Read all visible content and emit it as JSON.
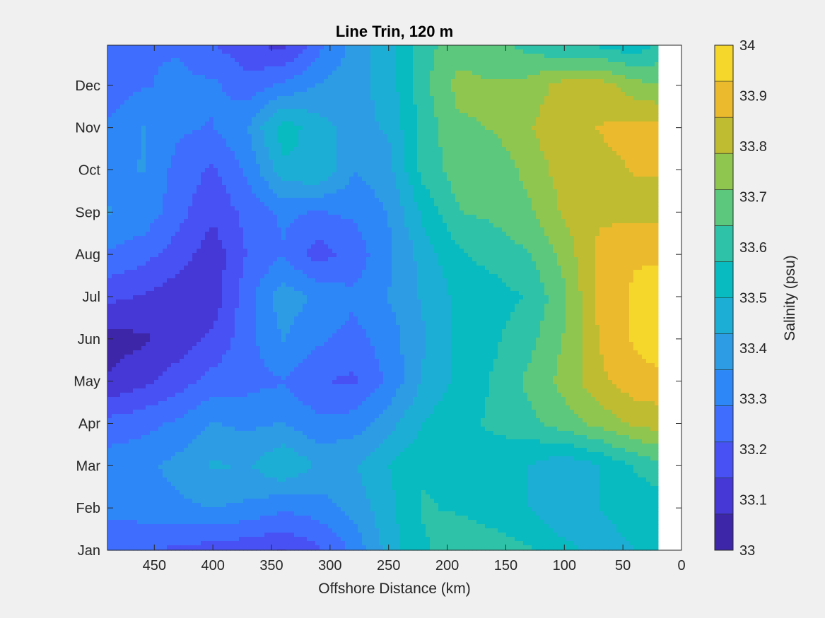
{
  "chart_data": {
    "type": "heatmap",
    "subtype": "filled-contour",
    "title": "Line Trin, 120 m",
    "xlabel": "Offshore Distance (km)",
    "ylabel": "",
    "xlim": [
      490,
      0
    ],
    "x_reversed": true,
    "xticks": [
      450,
      400,
      350,
      300,
      250,
      200,
      150,
      100,
      50,
      0
    ],
    "yticks": [
      "Jan",
      "Feb",
      "Mar",
      "Apr",
      "May",
      "Jun",
      "Jul",
      "Aug",
      "Sep",
      "Oct",
      "Nov",
      "Dec"
    ],
    "ylim_months": [
      0,
      11.95
    ],
    "data_extent_km": [
      490,
      20
    ],
    "grid": false,
    "colorbar": {
      "label": "Salinity (psu)",
      "min": 33.0,
      "max": 34.0,
      "levels": 14,
      "ticks": [
        "34",
        "33.9",
        "33.8",
        "33.7",
        "33.6",
        "33.5",
        "33.4",
        "33.3",
        "33.2",
        "33.1",
        "33"
      ],
      "colormap": [
        "#3e26a8",
        "#4538d7",
        "#4852f4",
        "#3f6efe",
        "#2e87f7",
        "#2d9ce5",
        "#1caed4",
        "#07bbc1",
        "#2ec3a8",
        "#5bc87e",
        "#8fc650",
        "#c0bc32",
        "#ecba2d",
        "#f5d72c",
        "#f9fb15"
      ]
    },
    "grid_x_km": [
      490,
      460,
      430,
      400,
      370,
      340,
      310,
      280,
      250,
      220,
      190,
      160,
      130,
      100,
      70,
      40,
      20
    ],
    "grid_y_month": [
      0,
      1,
      2,
      3,
      4,
      5,
      6,
      7,
      8,
      9,
      10,
      11,
      11.95
    ],
    "values": [
      [
        33.24,
        33.22,
        33.2,
        33.18,
        33.16,
        33.14,
        33.2,
        33.3,
        33.46,
        33.56,
        33.64,
        33.62,
        33.58,
        33.52,
        33.48,
        33.5,
        33.5
      ],
      [
        33.3,
        33.32,
        33.34,
        33.36,
        33.34,
        33.3,
        33.32,
        33.38,
        33.48,
        33.58,
        33.56,
        33.52,
        33.5,
        33.44,
        33.5,
        33.52,
        33.52
      ],
      [
        33.32,
        33.34,
        33.38,
        33.44,
        33.42,
        33.5,
        33.42,
        33.42,
        33.5,
        33.56,
        33.54,
        33.54,
        33.5,
        33.44,
        33.5,
        33.58,
        33.62
      ],
      [
        33.24,
        33.26,
        33.3,
        33.36,
        33.34,
        33.36,
        33.3,
        33.32,
        33.4,
        33.5,
        33.56,
        33.58,
        33.62,
        33.68,
        33.74,
        33.8,
        33.82
      ],
      [
        33.08,
        33.12,
        33.18,
        33.24,
        33.26,
        33.28,
        33.22,
        33.2,
        33.3,
        33.44,
        33.52,
        33.58,
        33.66,
        33.74,
        33.84,
        33.9,
        33.9
      ],
      [
        33.04,
        33.06,
        33.1,
        33.16,
        33.26,
        33.36,
        33.3,
        33.26,
        33.32,
        33.42,
        33.52,
        33.56,
        33.62,
        33.72,
        33.86,
        33.94,
        33.98
      ],
      [
        33.16,
        33.14,
        33.1,
        33.1,
        33.26,
        33.4,
        33.34,
        33.3,
        33.36,
        33.44,
        33.52,
        33.54,
        33.58,
        33.7,
        33.88,
        33.94,
        33.96
      ],
      [
        33.28,
        33.24,
        33.18,
        33.1,
        33.22,
        33.28,
        33.18,
        33.24,
        33.34,
        33.46,
        33.56,
        33.6,
        33.64,
        33.74,
        33.88,
        33.92,
        33.92
      ],
      [
        33.36,
        33.34,
        33.24,
        33.16,
        33.24,
        33.3,
        33.28,
        33.3,
        33.36,
        33.52,
        33.64,
        33.66,
        33.7,
        33.8,
        33.84,
        33.84,
        33.84
      ],
      [
        33.34,
        33.36,
        33.26,
        33.2,
        33.3,
        33.48,
        33.5,
        33.36,
        33.4,
        33.6,
        33.68,
        33.66,
        33.74,
        33.82,
        33.84,
        33.86,
        33.86
      ],
      [
        33.3,
        33.36,
        33.3,
        33.28,
        33.36,
        33.54,
        33.46,
        33.4,
        33.44,
        33.6,
        33.7,
        33.72,
        33.78,
        33.84,
        33.86,
        33.88,
        33.88
      ],
      [
        33.24,
        33.28,
        33.3,
        33.3,
        33.24,
        33.3,
        33.36,
        33.4,
        33.46,
        33.62,
        33.74,
        33.72,
        33.74,
        33.82,
        33.82,
        33.74,
        33.72
      ],
      [
        33.26,
        33.28,
        33.28,
        33.22,
        33.16,
        33.12,
        33.26,
        33.38,
        33.48,
        33.62,
        33.68,
        33.66,
        33.62,
        33.56,
        33.56,
        33.52,
        33.58
      ]
    ]
  }
}
